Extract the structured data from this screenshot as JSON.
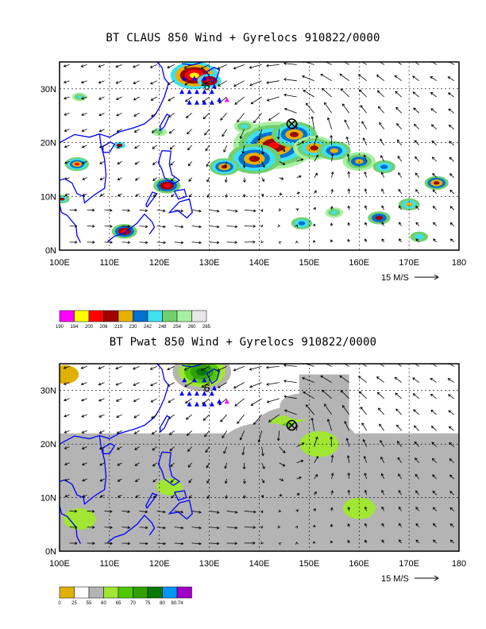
{
  "panels": [
    {
      "title": "BT CLAUS 850 Wind + Gyrelocs 910822/0000",
      "field": "claus",
      "lon_ticks": [
        "100E",
        "110E",
        "120E",
        "130E",
        "140E",
        "150E",
        "160E",
        "170E",
        "180"
      ],
      "lat_ticks": [
        "0N",
        "10N",
        "20N",
        "30N"
      ],
      "ref_vector_label": "15 M/S",
      "colorbar": {
        "labels": [
          "190",
          "194",
          "200",
          "206",
          "219",
          "230",
          "242",
          "248",
          "254",
          "260",
          "265"
        ],
        "colors": [
          "#ff00ff",
          "#ffff00",
          "#ff0000",
          "#a00000",
          "#e6b000",
          "#0070d0",
          "#40e0f0",
          "#70d070",
          "#a8f0a0",
          "#e8e8e8"
        ]
      }
    },
    {
      "title": "BT Pwat 850 Wind + Gyrelocs 910822/0000",
      "field": "pwat",
      "lon_ticks": [
        "100E",
        "110E",
        "120E",
        "130E",
        "140E",
        "150E",
        "160E",
        "170E",
        "180"
      ],
      "lat_ticks": [
        "0N",
        "10N",
        "20N",
        "30N"
      ],
      "ref_vector_label": "15 M/S",
      "colorbar": {
        "labels": [
          "0",
          "25",
          "55",
          "60",
          "65",
          "70",
          "75",
          "80",
          "80.74"
        ],
        "colors": [
          "#e0b000",
          "#ffffff",
          "#b4b4b4",
          "#a0e632",
          "#50c800",
          "#32a000",
          "#0a7800",
          "#0096ff",
          "#a000c8"
        ]
      }
    }
  ],
  "map_extent": {
    "lon": [
      100,
      180
    ],
    "lat": [
      0,
      35
    ]
  },
  "markers": {
    "gyre_center": {
      "symbol": "⊗",
      "lon": 146.5,
      "lat": 23.5
    },
    "cyclone_label": {
      "text": "6",
      "lon": 129.5,
      "lat": 30.5
    }
  },
  "colors": {
    "coast": "#0000ff",
    "triangles": "#0000ff",
    "triangle_highlight": "#ff00ff",
    "frame": "#000000"
  }
}
